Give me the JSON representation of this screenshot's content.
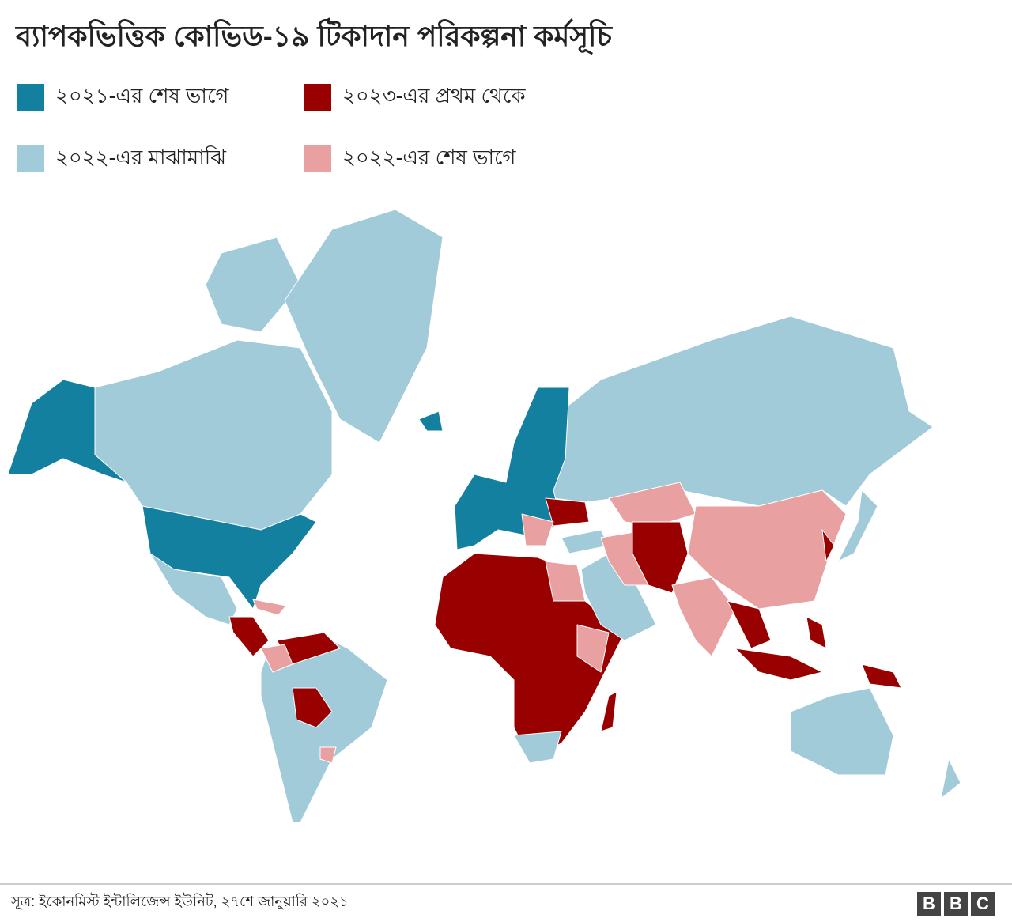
{
  "title": "ব্যাপকভিত্তিক কোভিড-১৯ টিকাদান পরিকল্পনা কর্মসূচি",
  "legend": [
    {
      "label": "২০২১-এর শেষ ভাগে",
      "color": "#13809f"
    },
    {
      "label": "২০২৩-এর প্রথম থেকে",
      "color": "#990000"
    },
    {
      "label": "২০২২-এর মাঝামাঝি",
      "color": "#a2cbd9"
    },
    {
      "label": "২০২২-এর শেষ ভাগে",
      "color": "#e8a0a0"
    }
  ],
  "source": "সূত্র: ইকোনমিস্ট ইন্টালিজেন্স ইউনিট, ২৭শে জানুয়ারি ২০২১",
  "logo": [
    "B",
    "B",
    "C"
  ]
}
